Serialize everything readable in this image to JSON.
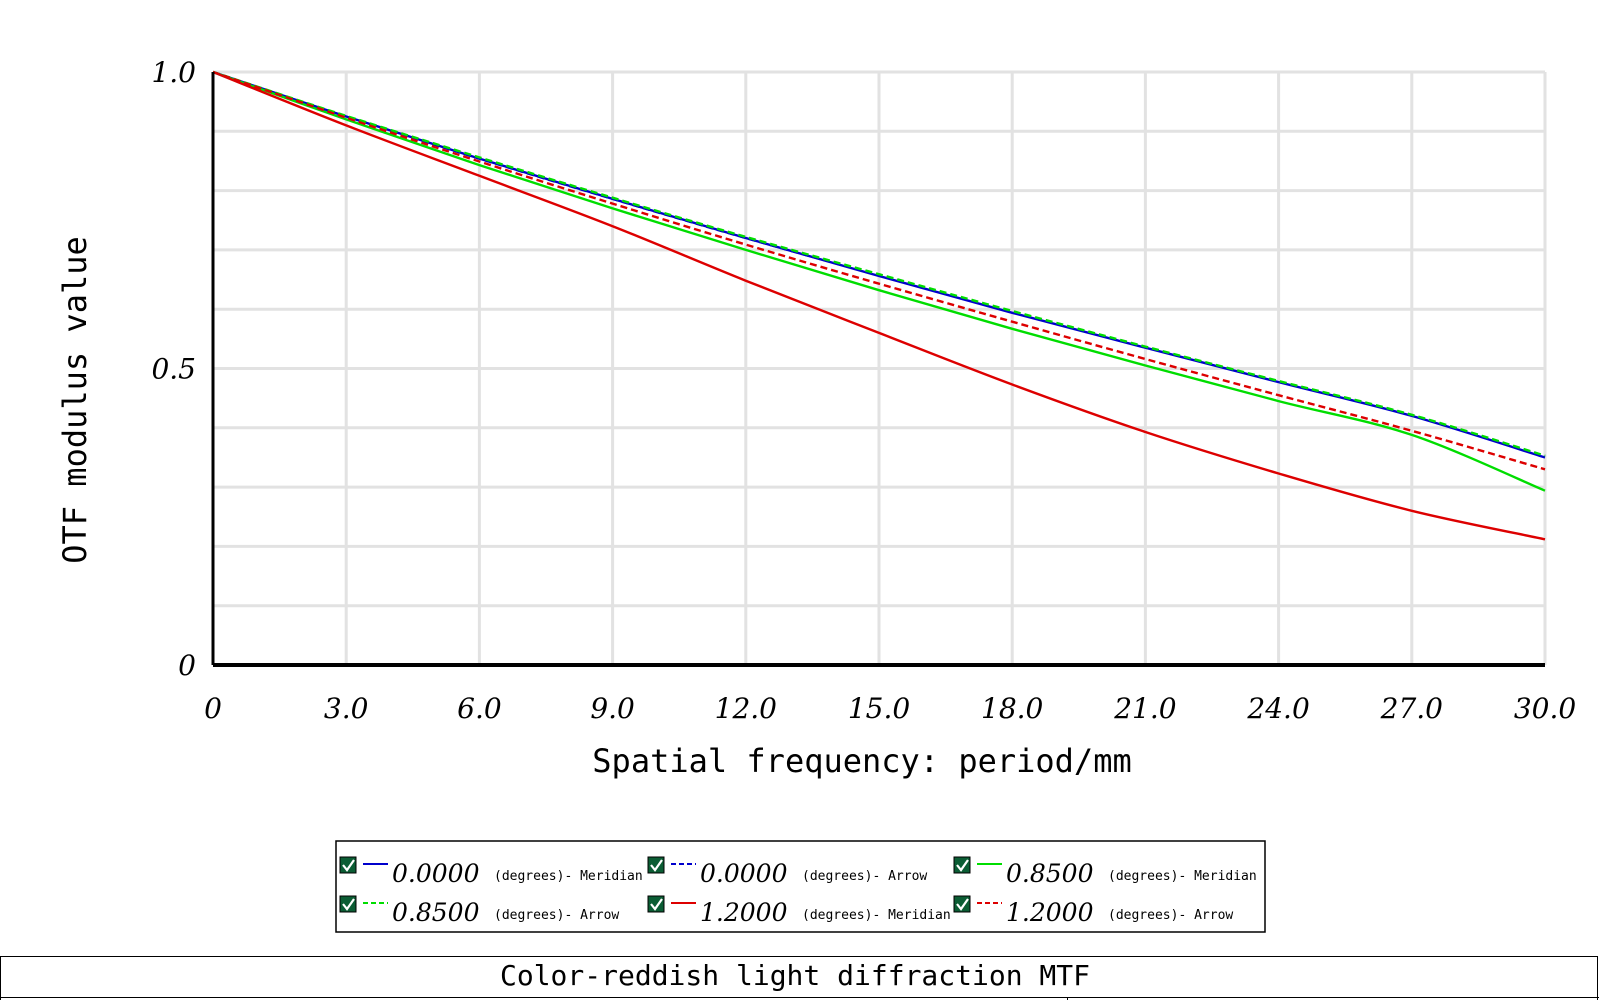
{
  "chart_data": {
    "type": "line",
    "title": "Color-reddish light diffraction MTF",
    "xlabel": "Spatial frequency: period/mm",
    "ylabel": "OTF modulus value",
    "xlim": [
      0,
      30
    ],
    "ylim": [
      0,
      1
    ],
    "x_tick_labels": [
      "0",
      "3.0",
      "6.0",
      "9.0",
      "12.0",
      "15.0",
      "18.0",
      "21.0",
      "24.0",
      "27.0",
      "30.0"
    ],
    "y_tick_labels": [
      "0",
      "0.5",
      "1.0"
    ],
    "grid": true,
    "legend_position": "bottom-center",
    "x": [
      0,
      3,
      6,
      9,
      12,
      15,
      18,
      21,
      24,
      27,
      30
    ],
    "series": [
      {
        "name": "0.0000 (degrees)- Meridian",
        "name_value": "0.0000",
        "name_suffix": "(degrees)- Meridian",
        "color": "#0000cc",
        "dash": "solid",
        "values": [
          1.0,
          0.925,
          0.854,
          0.786,
          0.72,
          0.656,
          0.594,
          0.535,
          0.477,
          0.42,
          0.35
        ]
      },
      {
        "name": "0.0000 (degrees)- Arrow",
        "name_value": "0.0000",
        "name_suffix": "(degrees)- Arrow",
        "color": "#0000cc",
        "dash": "dashed",
        "values": [
          1.0,
          0.925,
          0.854,
          0.786,
          0.72,
          0.657,
          0.595,
          0.536,
          0.478,
          0.421,
          0.352
        ]
      },
      {
        "name": "0.8500 (degrees)- Meridian",
        "name_value": "0.8500",
        "name_suffix": "(degrees)- Meridian",
        "color": "#00dd00",
        "dash": "solid",
        "values": [
          1.0,
          0.92,
          0.843,
          0.77,
          0.7,
          0.632,
          0.567,
          0.505,
          0.445,
          0.388,
          0.294
        ]
      },
      {
        "name": "0.8500 (degrees)- Arrow",
        "name_value": "0.8500",
        "name_suffix": "(degrees)- Arrow",
        "color": "#00dd00",
        "dash": "dashed",
        "values": [
          1.0,
          0.926,
          0.856,
          0.788,
          0.722,
          0.659,
          0.597,
          0.537,
          0.479,
          0.422,
          0.353
        ]
      },
      {
        "name": "1.2000 (degrees)- Meridian",
        "name_value": "1.2000",
        "name_suffix": "(degrees)- Meridian",
        "color": "#dd0000",
        "dash": "solid",
        "values": [
          1.0,
          0.91,
          0.825,
          0.74,
          0.648,
          0.56,
          0.473,
          0.393,
          0.323,
          0.26,
          0.212
        ]
      },
      {
        "name": "1.2000 (degrees)- Arrow",
        "name_value": "1.2000",
        "name_suffix": "(degrees)- Arrow",
        "color": "#dd0000",
        "dash": "dashed",
        "values": [
          1.0,
          0.923,
          0.849,
          0.778,
          0.709,
          0.643,
          0.579,
          0.516,
          0.455,
          0.395,
          0.33
        ]
      }
    ]
  }
}
